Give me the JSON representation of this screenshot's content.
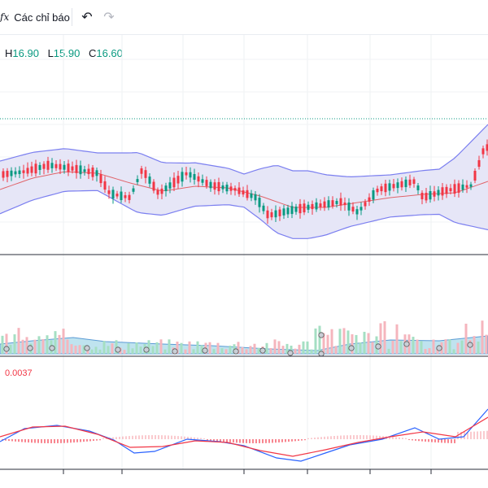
{
  "toolbar": {
    "indicators_label": "Các chỉ báo",
    "fx_glyph": "ƒx",
    "undo_icon": "undo-icon",
    "redo_icon": "redo-icon"
  },
  "legend": {
    "h_key": "H",
    "h_val": "16.90",
    "l_key": "L",
    "l_val": "15.90",
    "c_key": "C",
    "c_val": "16.60"
  },
  "macd": {
    "value": "0.0037"
  },
  "colors": {
    "up": "#089981",
    "down": "#f23645",
    "bb_fill": "#e6e6f7",
    "bb_line": "#7b7ff0",
    "basis": "#e0656b",
    "macd_line": "#2962ff",
    "signal": "#f23645"
  }
}
